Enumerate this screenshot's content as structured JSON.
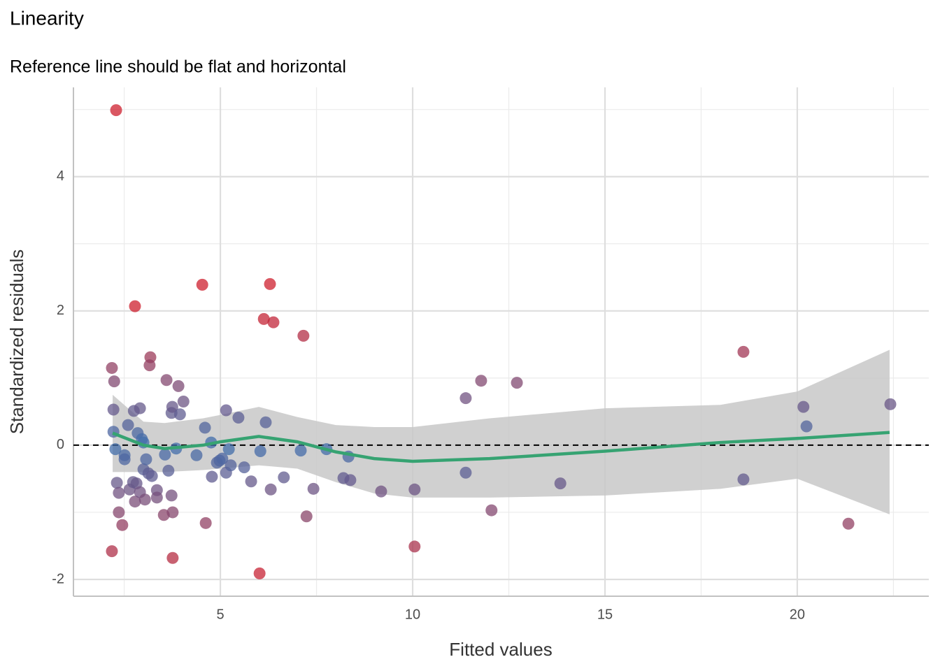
{
  "chart_data": {
    "type": "scatter",
    "title": "Linearity",
    "subtitle": "Reference line should be flat and horizontal",
    "x_label": "Fitted values",
    "y_label": "Standardized residuals",
    "xlim": [
      1.18,
      23.42
    ],
    "ylim": [
      -2.25,
      5.33
    ],
    "xticks": [
      5,
      10,
      15,
      20
    ],
    "yticks": [
      -2,
      0,
      2,
      4
    ],
    "x_minor_grid": [
      2.5,
      7.5,
      12.5,
      17.5,
      22.5
    ],
    "y_minor_grid": [
      -1,
      1,
      3,
      5
    ],
    "grid": true,
    "reference_line": 0,
    "color_low": "#3f6fae",
    "color_high": "#cd1f2e",
    "color_domain": [
      0,
      2
    ],
    "x": [
      2.29,
      2.18,
      2.24,
      2.22,
      2.22,
      2.27,
      2.31,
      2.36,
      2.36,
      2.45,
      2.18,
      2.51,
      2.51,
      2.6,
      2.64,
      2.73,
      2.75,
      2.78,
      2.78,
      2.82,
      2.85,
      2.91,
      2.91,
      2.96,
      3.0,
      3.0,
      3.04,
      3.07,
      3.13,
      3.18,
      3.16,
      3.22,
      3.35,
      3.35,
      3.53,
      3.56,
      3.6,
      3.65,
      3.73,
      3.75,
      3.73,
      3.76,
      3.76,
      3.85,
      3.91,
      3.95,
      4.04,
      4.38,
      4.53,
      4.6,
      4.62,
      4.76,
      4.78,
      4.91,
      4.98,
      5.05,
      5.15,
      5.15,
      5.22,
      5.27,
      5.47,
      5.62,
      5.8,
      6.02,
      6.04,
      6.13,
      6.18,
      6.29,
      6.31,
      6.38,
      6.65,
      7.09,
      7.16,
      7.24,
      7.42,
      7.76,
      8.2,
      8.33,
      8.38,
      9.18,
      10.05,
      10.05,
      11.38,
      11.38,
      11.78,
      12.05,
      12.71,
      13.84,
      18.6,
      18.6,
      20.16,
      20.24,
      21.33,
      22.42
    ],
    "values": [
      4.99,
      1.15,
      0.95,
      0.53,
      0.2,
      -0.06,
      -0.56,
      -0.71,
      -1.0,
      -1.19,
      -1.58,
      -0.15,
      -0.21,
      0.3,
      -0.66,
      -0.55,
      0.51,
      2.07,
      -0.84,
      -0.57,
      0.18,
      0.55,
      -0.7,
      0.09,
      0.04,
      -0.36,
      -0.81,
      -0.21,
      -0.42,
      1.31,
      1.19,
      -0.46,
      -0.67,
      -0.78,
      -1.04,
      -0.14,
      0.97,
      -0.38,
      0.48,
      0.57,
      -0.75,
      -1.0,
      -1.68,
      -0.05,
      0.88,
      0.46,
      0.65,
      -0.15,
      2.39,
      0.26,
      -1.16,
      0.04,
      -0.47,
      -0.26,
      -0.23,
      -0.2,
      0.52,
      -0.41,
      -0.06,
      -0.3,
      0.41,
      -0.33,
      -0.54,
      -1.91,
      -0.09,
      1.88,
      0.34,
      2.4,
      -0.66,
      1.83,
      -0.48,
      -0.08,
      1.63,
      -1.06,
      -0.65,
      -0.06,
      -0.49,
      -0.17,
      -0.52,
      -0.69,
      -1.51,
      -0.66,
      0.7,
      -0.41,
      0.96,
      -0.97,
      0.93,
      -0.57,
      1.39,
      -0.51,
      0.57,
      0.28,
      -1.17,
      0.61
    ],
    "smooth": {
      "color": "#36a372",
      "band_color": "#c8c8c8",
      "x": [
        2.2,
        3.0,
        3.55,
        4.55,
        5.0,
        6.0,
        7.0,
        8.0,
        9.0,
        10.0,
        12.0,
        15.0,
        18.0,
        20.0,
        22.4
      ],
      "y": [
        0.18,
        0.0,
        -0.05,
        0.0,
        0.05,
        0.13,
        0.05,
        -0.1,
        -0.2,
        -0.24,
        -0.2,
        -0.09,
        0.04,
        0.1,
        0.19
      ],
      "lower": [
        -0.4,
        -0.4,
        -0.4,
        -0.37,
        -0.35,
        -0.3,
        -0.35,
        -0.55,
        -0.72,
        -0.78,
        -0.78,
        -0.75,
        -0.65,
        -0.5,
        -1.03
      ],
      "upper": [
        0.75,
        0.35,
        0.33,
        0.4,
        0.45,
        0.57,
        0.42,
        0.3,
        0.27,
        0.27,
        0.4,
        0.55,
        0.6,
        0.8,
        1.42
      ]
    }
  }
}
